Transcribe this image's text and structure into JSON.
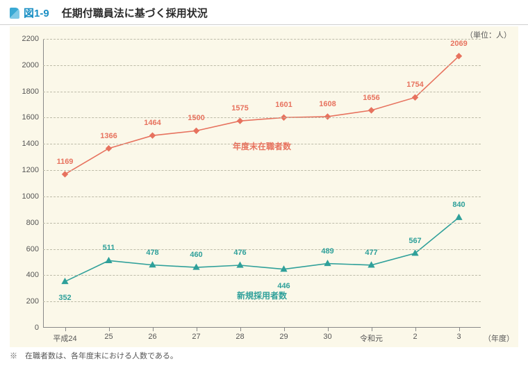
{
  "figure_label": "図1-9",
  "figure_title": "任期付職員法に基づく採用状況",
  "unit_label": "（単位：人）",
  "x_axis_title": "（年度）",
  "footnote": "※　在職者数は、各年度末における人数である。",
  "chart": {
    "type": "line",
    "background_color": "#fbf8e9",
    "grid_color": "#bdbba8",
    "axis_color": "#888888",
    "ylim": [
      0,
      2200
    ],
    "ytick_step": 200,
    "x_categories": [
      "平成24",
      "25",
      "26",
      "27",
      "28",
      "29",
      "30",
      "令和元",
      "2",
      "3"
    ],
    "series": [
      {
        "name": "年度末在職者数",
        "color": "#e7725e",
        "label_color": "#e7725e",
        "marker": "diamond",
        "marker_size": 8,
        "line_width": 1.6,
        "values": [
          1169,
          1366,
          1464,
          1500,
          1575,
          1601,
          1608,
          1656,
          1754,
          2069
        ],
        "label_offset_y": -12,
        "series_label_pos": {
          "x_index": 4.5,
          "y": 1430
        }
      },
      {
        "name": "新規採用者数",
        "color": "#2fa09a",
        "label_color": "#2fa09a",
        "marker": "triangle",
        "marker_size": 9,
        "line_width": 1.6,
        "values": [
          352,
          511,
          478,
          460,
          476,
          446,
          489,
          477,
          567,
          840
        ],
        "label_offset_y": -12,
        "label_offset_y_overrides": {
          "0": 18,
          "5": 18
        },
        "series_label_pos": {
          "x_index": 4.5,
          "y": 290
        }
      }
    ]
  }
}
